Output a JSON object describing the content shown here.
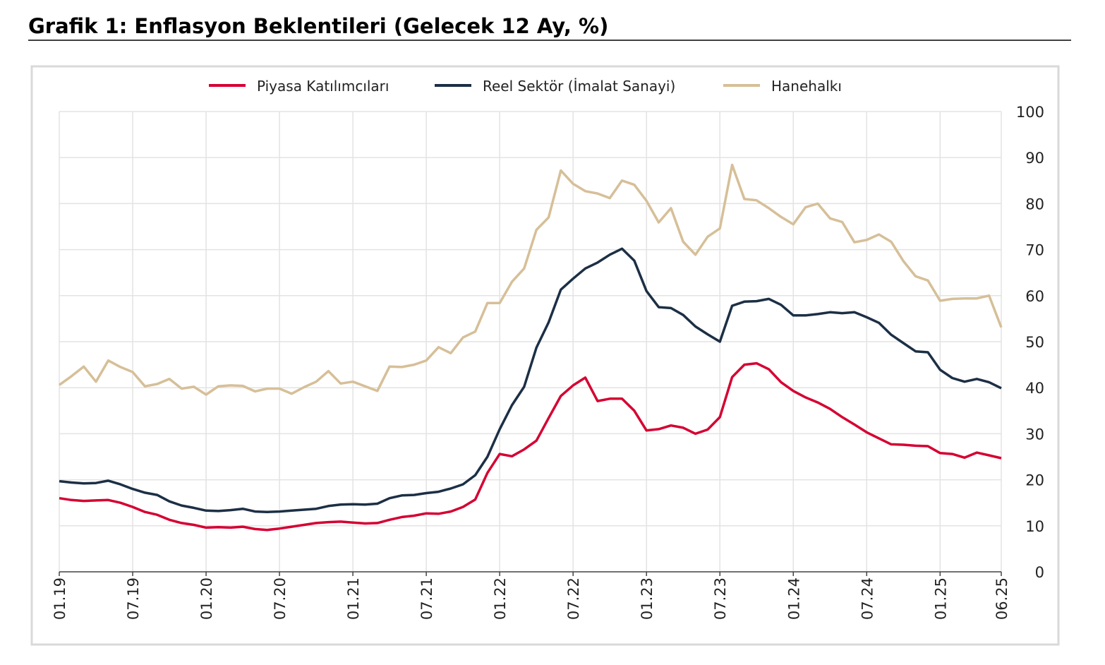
{
  "chart_data": {
    "type": "line",
    "title": "Grafik 1: Enflasyon Beklentileri (Gelecek 12 Ay, %)",
    "xlabel": "",
    "ylabel": "",
    "ylim": [
      0,
      100
    ],
    "yticks": [
      "0",
      "10",
      "20",
      "30",
      "40",
      "50",
      "60",
      "70",
      "80",
      "90",
      "100"
    ],
    "xticks": [
      {
        "index": 0,
        "label": "01.19"
      },
      {
        "index": 6,
        "label": "07.19"
      },
      {
        "index": 12,
        "label": "01.20"
      },
      {
        "index": 18,
        "label": "07.20"
      },
      {
        "index": 24,
        "label": "01.21"
      },
      {
        "index": 30,
        "label": "07.21"
      },
      {
        "index": 36,
        "label": "01.22"
      },
      {
        "index": 42,
        "label": "07.22"
      },
      {
        "index": 48,
        "label": "01.23"
      },
      {
        "index": 54,
        "label": "07.23"
      },
      {
        "index": 60,
        "label": "01.24"
      },
      {
        "index": 66,
        "label": "07.24"
      },
      {
        "index": 72,
        "label": "01.25"
      },
      {
        "index": 77,
        "label": "06.25"
      }
    ],
    "x_range": "01.2019 - 06.2025 (monthly)",
    "grid": true,
    "legend_position": "top-center",
    "series": [
      {
        "name": "Piyasa Katılımcıları",
        "color": "#d50032",
        "values": [
          16.0,
          15.6,
          15.4,
          15.5,
          15.6,
          15.0,
          14.1,
          13.0,
          12.4,
          11.3,
          10.6,
          10.2,
          9.6,
          9.7,
          9.6,
          9.8,
          9.3,
          9.1,
          9.4,
          9.8,
          10.2,
          10.6,
          10.8,
          10.9,
          10.7,
          10.5,
          10.6,
          11.3,
          11.9,
          12.2,
          12.7,
          12.6,
          13.1,
          14.1,
          15.7,
          21.5,
          25.6,
          25.1,
          26.6,
          28.5,
          33.4,
          38.2,
          40.5,
          42.2,
          37.1,
          37.6,
          37.6,
          35.0,
          30.7,
          31.0,
          31.8,
          31.3,
          30.0,
          30.9,
          33.6,
          42.3,
          45.0,
          45.3,
          44.0,
          41.2,
          39.3,
          37.9,
          36.8,
          35.4,
          33.6,
          32.0,
          30.3,
          29.0,
          27.7,
          27.6,
          27.4,
          27.3,
          25.8,
          25.6,
          24.8,
          25.9,
          25.3,
          24.7
        ]
      },
      {
        "name": "Reel Sektör (İmalat Sanayi)",
        "color": "#1c2f45",
        "values": [
          19.7,
          19.4,
          19.2,
          19.3,
          19.8,
          19.0,
          18.0,
          17.2,
          16.7,
          15.3,
          14.4,
          13.9,
          13.3,
          13.2,
          13.4,
          13.7,
          13.1,
          13.0,
          13.1,
          13.3,
          13.5,
          13.7,
          14.3,
          14.6,
          14.7,
          14.6,
          14.8,
          16.0,
          16.6,
          16.7,
          17.1,
          17.4,
          18.1,
          19.0,
          21.0,
          25.0,
          31.0,
          36.2,
          40.2,
          48.7,
          54.2,
          61.3,
          63.7,
          65.9,
          67.2,
          68.9,
          70.2,
          67.6,
          61.0,
          57.5,
          57.3,
          55.8,
          53.3,
          51.6,
          50.0,
          57.8,
          58.7,
          58.8,
          59.3,
          58.0,
          55.7,
          55.7,
          56.0,
          56.4,
          56.2,
          56.4,
          55.3,
          54.1,
          51.5,
          49.7,
          47.9,
          47.7,
          43.9,
          42.1,
          41.3,
          41.9,
          41.2,
          39.9
        ]
      },
      {
        "name": "Hanehalkı",
        "color": "#d6bf98",
        "values": [
          40.6,
          42.5,
          44.6,
          41.3,
          45.9,
          44.5,
          43.4,
          40.3,
          40.8,
          41.9,
          39.8,
          40.2,
          38.5,
          40.3,
          40.5,
          40.4,
          39.2,
          39.8,
          39.8,
          38.7,
          40.1,
          41.3,
          43.6,
          40.9,
          41.3,
          40.3,
          39.3,
          44.6,
          44.5,
          45.0,
          45.9,
          48.8,
          47.5,
          50.9,
          52.2,
          58.4,
          58.4,
          63.0,
          65.9,
          74.3,
          77.0,
          87.2,
          84.3,
          82.7,
          82.2,
          81.2,
          85.0,
          84.1,
          80.6,
          75.9,
          79.0,
          71.7,
          68.9,
          72.8,
          74.6,
          88.4,
          81.0,
          80.7,
          79.0,
          77.1,
          75.5,
          79.2,
          80.0,
          76.8,
          76.0,
          71.6,
          72.1,
          73.3,
          71.7,
          67.5,
          64.2,
          63.3,
          58.9,
          59.3,
          59.4,
          59.4,
          60.0,
          53.1
        ]
      }
    ]
  }
}
